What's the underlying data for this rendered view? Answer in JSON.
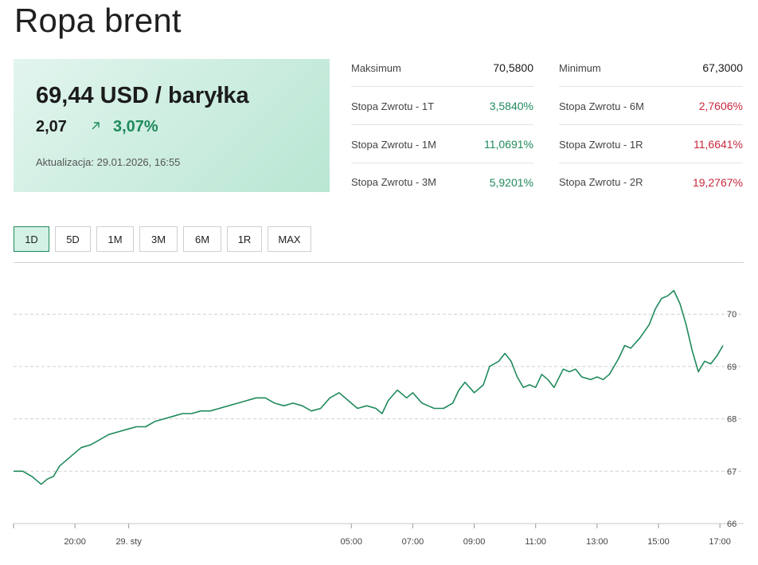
{
  "title": "Ropa brent",
  "price": {
    "value": "69,44 USD / baryłka",
    "change": "2,07",
    "change_pct": "3,07%",
    "updated": "Aktualizacja: 29.01.2026, 16:55",
    "trend_icon": "arrow-up-right-icon"
  },
  "stats": {
    "left": [
      {
        "label": "Maksimum",
        "value": "70,5800",
        "tone": "neutral"
      },
      {
        "label": "Stopa Zwrotu - 1T",
        "value": "3,5840%",
        "tone": "pos"
      },
      {
        "label": "Stopa Zwrotu - 1M",
        "value": "11,0691%",
        "tone": "pos"
      },
      {
        "label": "Stopa Zwrotu - 3M",
        "value": "5,9201%",
        "tone": "pos"
      }
    ],
    "right": [
      {
        "label": "Minimum",
        "value": "67,3000",
        "tone": "neutral"
      },
      {
        "label": "Stopa Zwrotu - 6M",
        "value": "2,7606%",
        "tone": "neg"
      },
      {
        "label": "Stopa Zwrotu - 1R",
        "value": "11,6641%",
        "tone": "neg"
      },
      {
        "label": "Stopa Zwrotu - 2R",
        "value": "19,2767%",
        "tone": "neg"
      }
    ]
  },
  "ranges": [
    "1D",
    "5D",
    "1M",
    "3M",
    "6M",
    "1R",
    "MAX"
  ],
  "active_range": "1D",
  "colors": {
    "accent": "#1f8a5b",
    "negative": "#c8283e",
    "line": "#1f8a5b",
    "grid": "#cfcfcf"
  },
  "chart_data": {
    "type": "line",
    "xlabel": "",
    "ylabel": "",
    "ylim": [
      66,
      70.5
    ],
    "yticks": [
      66,
      67,
      68,
      69,
      70
    ],
    "xticks": [
      {
        "label": "20:00",
        "t": 2.0
      },
      {
        "label": "29. sty",
        "t": 3.75
      },
      {
        "label": "05:00",
        "t": 11.0
      },
      {
        "label": "07:00",
        "t": 13.0
      },
      {
        "label": "09:00",
        "t": 15.0
      },
      {
        "label": "11:00",
        "t": 17.0
      },
      {
        "label": "13:00",
        "t": 19.0
      },
      {
        "label": "15:00",
        "t": 21.0
      },
      {
        "label": "17:00",
        "t": 23.0
      }
    ],
    "x_note": "x = hours since 18:00 on 28.01",
    "series": [
      {
        "name": "",
        "x": [
          0.0,
          0.3,
          0.6,
          0.9,
          1.1,
          1.3,
          1.5,
          1.7,
          2.0,
          2.2,
          2.5,
          2.8,
          3.1,
          3.4,
          3.7,
          4.0,
          4.3,
          4.6,
          4.9,
          5.2,
          5.5,
          5.8,
          6.1,
          6.4,
          6.7,
          7.0,
          7.3,
          7.6,
          7.9,
          8.2,
          8.5,
          8.8,
          9.1,
          9.4,
          9.7,
          10.0,
          10.3,
          10.6,
          10.9,
          11.2,
          11.5,
          11.8,
          12.0,
          12.2,
          12.5,
          12.8,
          13.0,
          13.3,
          13.5,
          13.7,
          14.0,
          14.3,
          14.5,
          14.7,
          15.0,
          15.3,
          15.5,
          15.8,
          16.0,
          16.2,
          16.4,
          16.6,
          16.8,
          17.0,
          17.2,
          17.4,
          17.6,
          17.9,
          18.1,
          18.3,
          18.5,
          18.8,
          19.0,
          19.2,
          19.4,
          19.7,
          19.9,
          20.1,
          20.4,
          20.7,
          20.9,
          21.1,
          21.3,
          21.5,
          21.7,
          21.9,
          22.1,
          22.3,
          22.5,
          22.7,
          22.9,
          23.1
        ],
        "y": [
          67.0,
          67.0,
          66.9,
          66.75,
          66.85,
          66.9,
          67.1,
          67.2,
          67.35,
          67.45,
          67.5,
          67.6,
          67.7,
          67.75,
          67.8,
          67.85,
          67.85,
          67.95,
          68.0,
          68.05,
          68.1,
          68.1,
          68.15,
          68.15,
          68.2,
          68.25,
          68.3,
          68.35,
          68.4,
          68.4,
          68.3,
          68.25,
          68.3,
          68.25,
          68.15,
          68.2,
          68.4,
          68.5,
          68.35,
          68.2,
          68.25,
          68.2,
          68.1,
          68.35,
          68.55,
          68.4,
          68.5,
          68.3,
          68.25,
          68.2,
          68.2,
          68.3,
          68.55,
          68.7,
          68.5,
          68.65,
          69.0,
          69.1,
          69.25,
          69.1,
          68.8,
          68.6,
          68.65,
          68.6,
          68.85,
          68.75,
          68.6,
          68.95,
          68.9,
          68.95,
          68.8,
          68.75,
          68.8,
          68.75,
          68.85,
          69.15,
          69.4,
          69.35,
          69.55,
          69.8,
          70.1,
          70.3,
          70.35,
          70.45,
          70.2,
          69.8,
          69.3,
          68.9,
          69.1,
          69.05,
          69.2,
          69.4
        ]
      }
    ]
  }
}
